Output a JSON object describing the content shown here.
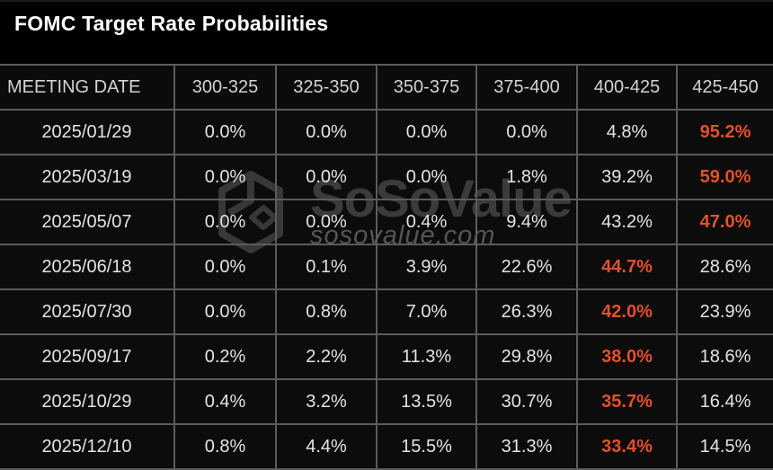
{
  "title": "FOMC Target Rate Probabilities",
  "watermark": {
    "logo_icon": "sosovalue-cube-logo",
    "name": "SoSoValue",
    "domain": "sosovalue.com"
  },
  "colors": {
    "page_bg": "#000000",
    "cell_bg": "#0c0c0c",
    "grid": "#5c5c5c",
    "title_text": "#ffffff",
    "header_text": "#d2d2d2",
    "cell_text": "#e4e4e4",
    "highlight_orange": "#e2502c",
    "watermark_name": "#3b3b3b",
    "watermark_domain": "#555555"
  },
  "table": {
    "headers": [
      "MEETING DATE",
      "300-325",
      "325-350",
      "350-375",
      "375-400",
      "400-425",
      "425-450"
    ],
    "rows": [
      {
        "date": "2025/01/29",
        "values": [
          "0.0%",
          "0.0%",
          "0.0%",
          "0.0%",
          "4.8%",
          "95.2%"
        ],
        "highlight": 5
      },
      {
        "date": "2025/03/19",
        "values": [
          "0.0%",
          "0.0%",
          "0.0%",
          "1.8%",
          "39.2%",
          "59.0%"
        ],
        "highlight": 5
      },
      {
        "date": "2025/05/07",
        "values": [
          "0.0%",
          "0.0%",
          "0.4%",
          "9.4%",
          "43.2%",
          "47.0%"
        ],
        "highlight": 5
      },
      {
        "date": "2025/06/18",
        "values": [
          "0.0%",
          "0.1%",
          "3.9%",
          "22.6%",
          "44.7%",
          "28.6%"
        ],
        "highlight": 4
      },
      {
        "date": "2025/07/30",
        "values": [
          "0.0%",
          "0.8%",
          "7.0%",
          "26.3%",
          "42.0%",
          "23.9%"
        ],
        "highlight": 4
      },
      {
        "date": "2025/09/17",
        "values": [
          "0.2%",
          "2.2%",
          "11.3%",
          "29.8%",
          "38.0%",
          "18.6%"
        ],
        "highlight": 4
      },
      {
        "date": "2025/10/29",
        "values": [
          "0.4%",
          "3.2%",
          "13.5%",
          "30.7%",
          "35.7%",
          "16.4%"
        ],
        "highlight": 4
      },
      {
        "date": "2025/12/10",
        "values": [
          "0.8%",
          "4.4%",
          "15.5%",
          "31.3%",
          "33.4%",
          "14.5%"
        ],
        "highlight": 4
      }
    ]
  },
  "chart_data": {
    "type": "table",
    "title": "FOMC Target Rate Probabilities",
    "columns": [
      "MEETING DATE",
      "300-325",
      "325-350",
      "350-375",
      "375-400",
      "400-425",
      "425-450"
    ],
    "rows": [
      [
        "2025/01/29",
        0.0,
        0.0,
        0.0,
        0.0,
        4.8,
        95.2
      ],
      [
        "2025/03/19",
        0.0,
        0.0,
        0.0,
        1.8,
        39.2,
        59.0
      ],
      [
        "2025/05/07",
        0.0,
        0.0,
        0.4,
        9.4,
        43.2,
        47.0
      ],
      [
        "2025/06/18",
        0.0,
        0.1,
        3.9,
        22.6,
        44.7,
        28.6
      ],
      [
        "2025/07/30",
        0.0,
        0.8,
        7.0,
        26.3,
        42.0,
        23.9
      ],
      [
        "2025/09/17",
        0.2,
        2.2,
        11.3,
        29.8,
        38.0,
        18.6
      ],
      [
        "2025/10/29",
        0.4,
        3.2,
        13.5,
        30.7,
        35.7,
        16.4
      ],
      [
        "2025/12/10",
        0.8,
        4.4,
        15.5,
        31.3,
        33.4,
        14.5
      ]
    ],
    "units": "percent probability",
    "notes": "Highest probability in each row is highlighted orange (#e2502c)"
  }
}
